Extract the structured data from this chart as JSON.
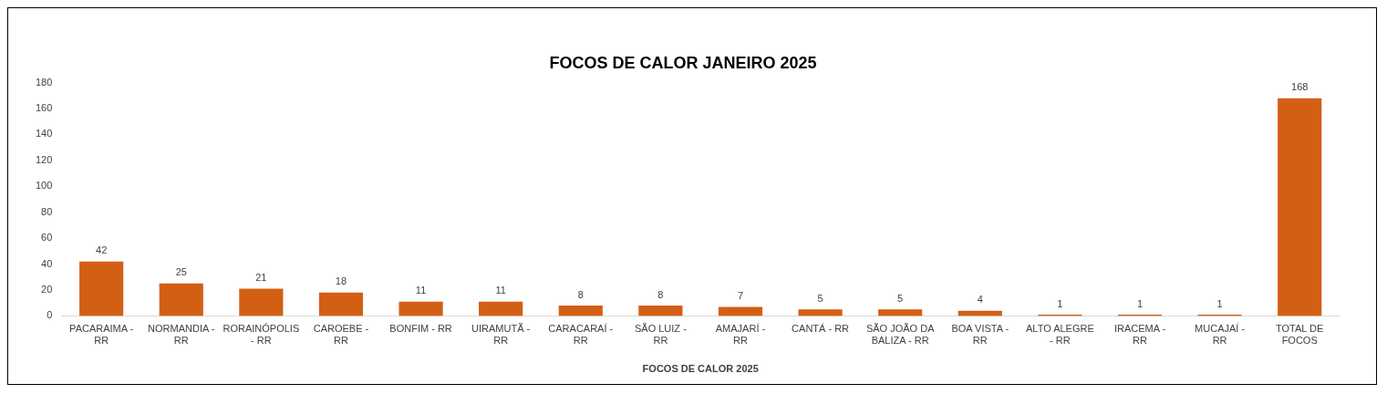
{
  "chart_data": {
    "type": "bar",
    "title": "FOCOS DE CALOR JANEIRO 2025",
    "xlabel": "FOCOS DE CALOR 2025",
    "categories": [
      "PACARAIMA - RR",
      "NORMANDIA - RR",
      "RORAINÓPOLIS - RR",
      "CAROEBE - RR",
      "BONFIM - RR",
      "UIRAMUTÃ - RR",
      "CARACARAÍ - RR",
      "SÃO LUIZ - RR",
      "AMAJARÍ - RR",
      "CANTÁ - RR",
      "SÃO JOÃO DA BALIZA - RR",
      "BOA VISTA - RR",
      "ALTO ALEGRE - RR",
      "IRACEMA - RR",
      "MUCAJAÍ - RR",
      "TOTAL DE FOCOS"
    ],
    "values": [
      42,
      25,
      21,
      18,
      11,
      11,
      8,
      8,
      7,
      5,
      5,
      4,
      1,
      1,
      1,
      168
    ],
    "color": "#d35f14",
    "ylim": [
      0,
      180
    ],
    "yticks": [
      0,
      20,
      40,
      60,
      80,
      100,
      120,
      140,
      160,
      180
    ],
    "grid": false,
    "legend": false,
    "data_labels": true
  }
}
